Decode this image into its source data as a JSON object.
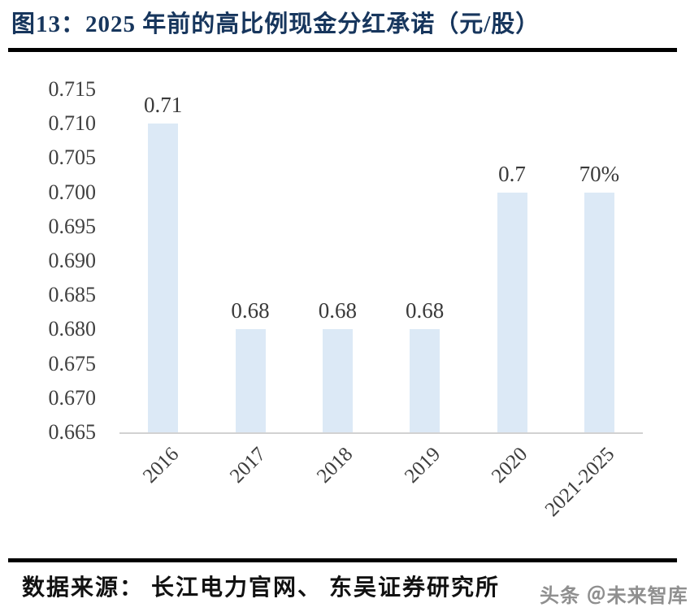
{
  "header": {
    "title": "图13：2025 年前的高比例现金分红承诺（元/股）"
  },
  "footer": {
    "source": "数据来源： 长江电力官网、 东吴证券研究所",
    "watermark": "头条 ＠未来智库"
  },
  "colors": {
    "bar_fill": "#dce9f6",
    "title_text": "#17365d",
    "axis_line": "#d2d2d2",
    "tick_text": "#3f3f3f",
    "divider": "#000000",
    "watermark_text": "#8f8f8f"
  },
  "chart_data": {
    "type": "bar",
    "title": "2025 年前的高比例现金分红承诺（元/股）",
    "categories": [
      "2016",
      "2017",
      "2018",
      "2019",
      "2020",
      "2021-2025"
    ],
    "values": [
      0.71,
      0.68,
      0.68,
      0.68,
      0.7,
      0.7
    ],
    "data_labels": [
      "0.71",
      "0.68",
      "0.68",
      "0.68",
      "0.7",
      "70%"
    ],
    "xlabel": "",
    "ylabel": "",
    "ylim": [
      0.665,
      0.715
    ],
    "ytick_step": 0.005,
    "ytick_labels_top_to_bottom": [
      "0.715",
      "0.710",
      "0.705",
      "0.700",
      "0.695",
      "0.690",
      "0.685",
      "0.680",
      "0.675",
      "0.670",
      "0.665"
    ],
    "grid": false,
    "legend_position": "none",
    "bar_value_unit": "元/股"
  }
}
